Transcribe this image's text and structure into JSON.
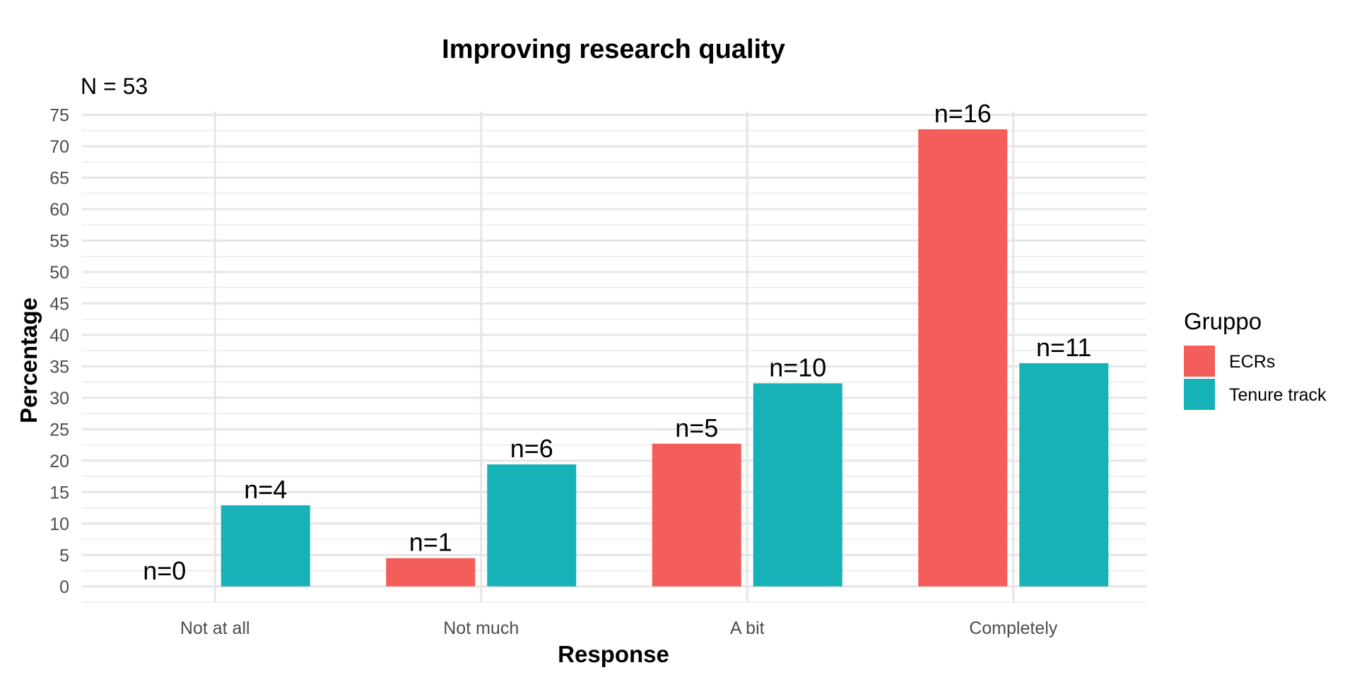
{
  "chart_data": {
    "type": "bar",
    "title": "Improving research quality",
    "subtitle": "N = 53",
    "xlabel": "Response",
    "ylabel": "Percentage",
    "categories": [
      "Not at all",
      "Not much",
      "A bit",
      "Completely"
    ],
    "series": [
      {
        "name": "ECRs",
        "color": "#F35E5A",
        "values": [
          0,
          4.5,
          22.7,
          72.7
        ],
        "labels": [
          "n=0",
          "n=1",
          "n=5",
          "n=16"
        ]
      },
      {
        "name": "Tenure track",
        "color": "#17B2B7",
        "values": [
          12.9,
          19.4,
          32.3,
          35.5
        ],
        "labels": [
          "n=4",
          "n=6",
          "n=10",
          "n=11"
        ]
      }
    ],
    "ylim": [
      -2.5,
      75.5
    ],
    "yticks": [
      0,
      5,
      10,
      15,
      20,
      25,
      30,
      35,
      40,
      45,
      50,
      55,
      60,
      65,
      70,
      75
    ],
    "legend_title": "Gruppo",
    "legend_position": "right",
    "grid": true
  }
}
